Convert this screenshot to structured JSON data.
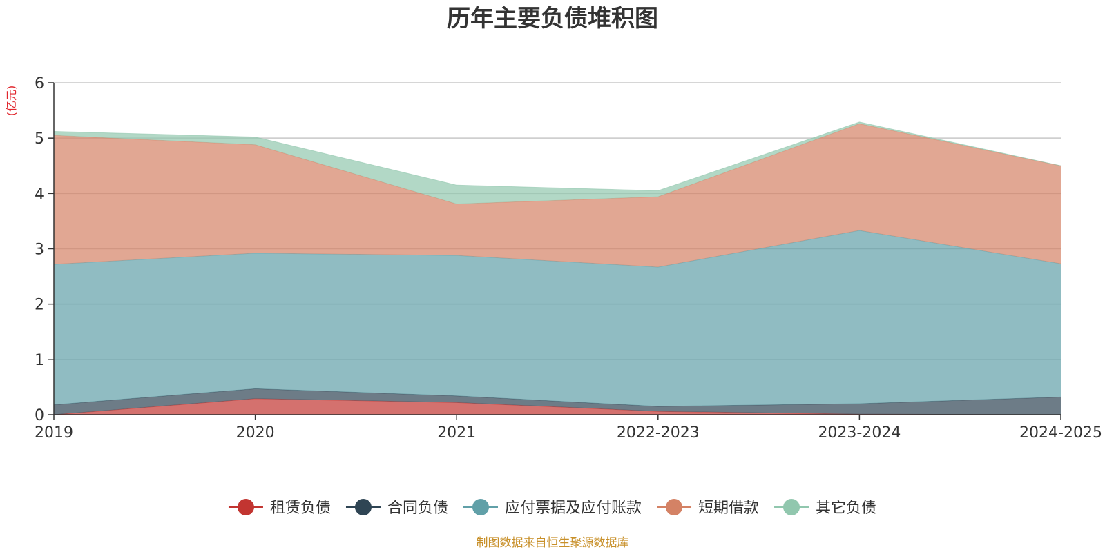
{
  "chart_data": {
    "type": "area",
    "stacked": true,
    "title": "历年主要负债堆积图",
    "unit_label": "(亿元)",
    "categories": [
      "2019",
      "2020",
      "2021",
      "2022-2023",
      "2023-2024",
      "2024-2025"
    ],
    "ylim": [
      0,
      6
    ],
    "yticks": [
      0,
      1,
      2,
      3,
      4,
      5,
      6
    ],
    "grid": true,
    "legend_position": "bottom",
    "series": [
      {
        "name": "租赁负债",
        "color": "#c23531",
        "values": [
          0.0,
          0.29,
          0.22,
          0.06,
          0.01,
          0.0
        ]
      },
      {
        "name": "合同负债",
        "color": "#2f4554",
        "values": [
          0.18,
          0.18,
          0.12,
          0.09,
          0.19,
          0.32
        ]
      },
      {
        "name": "应付票据及应付账款",
        "color": "#61a0a8",
        "values": [
          2.54,
          2.45,
          2.54,
          2.52,
          3.13,
          2.41
        ]
      },
      {
        "name": "短期借款",
        "color": "#d48265",
        "values": [
          2.33,
          1.96,
          0.93,
          1.27,
          1.93,
          1.77
        ]
      },
      {
        "name": "其它负债",
        "color": "#91c7ae",
        "values": [
          0.07,
          0.14,
          0.34,
          0.11,
          0.03,
          0.0
        ]
      }
    ],
    "source_note": "制图数据来自恒生聚源数据库"
  }
}
